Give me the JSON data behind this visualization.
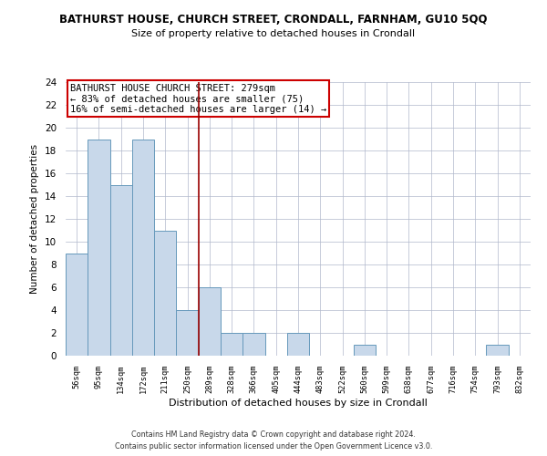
{
  "title": "BATHURST HOUSE, CHURCH STREET, CRONDALL, FARNHAM, GU10 5QQ",
  "subtitle": "Size of property relative to detached houses in Crondall",
  "xlabel": "Distribution of detached houses by size in Crondall",
  "ylabel": "Number of detached properties",
  "bar_color": "#c8d8ea",
  "bar_edge_color": "#6699bb",
  "bin_labels": [
    "56sqm",
    "95sqm",
    "134sqm",
    "172sqm",
    "211sqm",
    "250sqm",
    "289sqm",
    "328sqm",
    "366sqm",
    "405sqm",
    "444sqm",
    "483sqm",
    "522sqm",
    "560sqm",
    "599sqm",
    "638sqm",
    "677sqm",
    "716sqm",
    "754sqm",
    "793sqm",
    "832sqm"
  ],
  "bar_heights": [
    9,
    19,
    15,
    19,
    11,
    4,
    6,
    2,
    2,
    0,
    2,
    0,
    0,
    1,
    0,
    0,
    0,
    0,
    0,
    1,
    0
  ],
  "ylim": [
    0,
    24
  ],
  "yticks": [
    0,
    2,
    4,
    6,
    8,
    10,
    12,
    14,
    16,
    18,
    20,
    22,
    24
  ],
  "ref_line_x": 5.5,
  "annotation_line1": "BATHURST HOUSE CHURCH STREET: 279sqm",
  "annotation_line2": "← 83% of detached houses are smaller (75)",
  "annotation_line3": "16% of semi-detached houses are larger (14) →",
  "annotation_box_color": "#ffffff",
  "annotation_box_edge": "#cc0000",
  "ref_line_color": "#99000099",
  "footer_line1": "Contains HM Land Registry data © Crown copyright and database right 2024.",
  "footer_line2": "Contains public sector information licensed under the Open Government Licence v3.0.",
  "background_color": "#ffffff",
  "grid_color": "#b0b8cc"
}
